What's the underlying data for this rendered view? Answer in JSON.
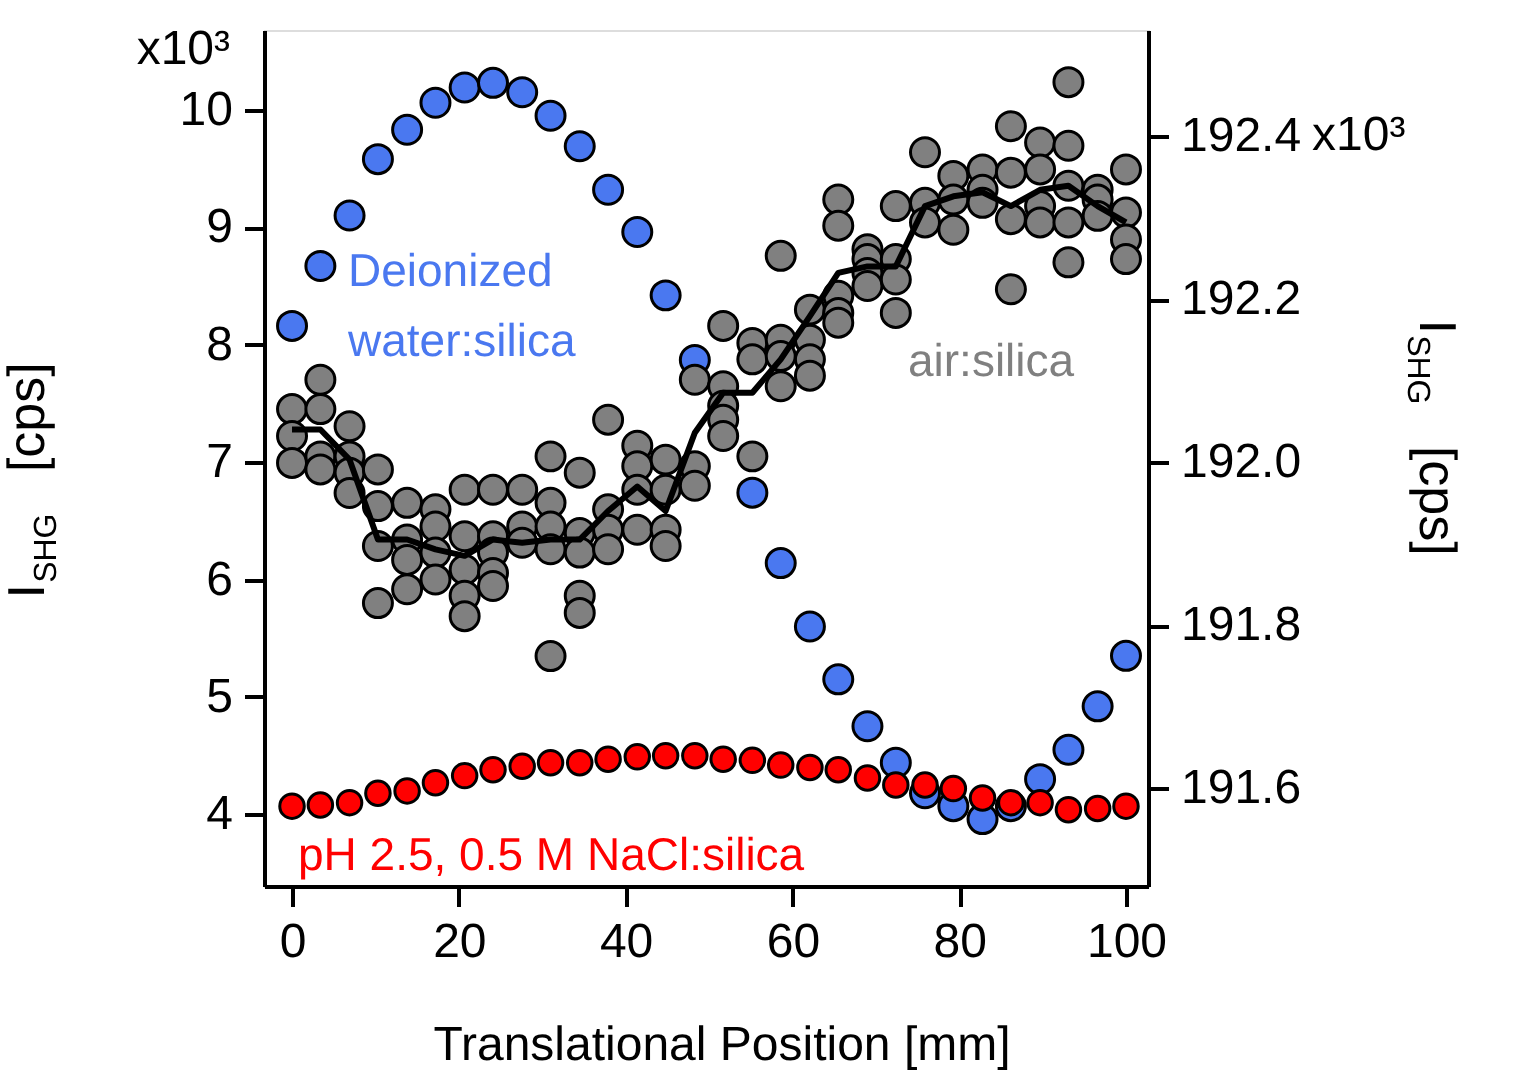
{
  "chart_data": {
    "type": "scatter",
    "xlabel": "Translational Position [mm]",
    "annotations": [
      "x10³",
      "x10³"
    ],
    "ylabel": "I$_{SHG}$  [cps]",
    "y2label": "I$_{SHG}$  [cps]",
    "x": [
      0,
      3.4,
      6.9,
      10.3,
      13.8,
      17.2,
      20.7,
      24.1,
      27.6,
      31,
      34.5,
      37.9,
      41.4,
      44.8,
      48.3,
      51.7,
      55.2,
      58.6,
      62.1,
      65.5,
      69,
      72.4,
      75.9,
      79.3,
      82.8,
      86.2,
      89.7,
      93.1,
      96.6,
      100
    ],
    "series": [
      {
        "name": "Deionized water:silica",
        "color": "#4a78f0",
        "values": [
          8.16,
          8.67,
          9.1,
          9.58,
          9.83,
          10.06,
          10.19,
          10.23,
          10.15,
          9.95,
          9.69,
          9.32,
          8.96,
          8.42,
          7.87,
          null,
          6.74,
          6.14,
          5.6,
          5.15,
          4.75,
          4.44,
          4.18,
          4.07,
          3.96,
          4.07,
          4.3,
          4.55,
          4.92,
          5.35
        ]
      },
      {
        "name": "pH 2.5, 0.5 M NaCl:silica",
        "color": "#ff0000",
        "values": [
          4.07,
          4.08,
          4.1,
          4.18,
          4.2,
          4.27,
          4.33,
          4.38,
          4.41,
          4.44,
          4.44,
          4.47,
          4.49,
          4.5,
          4.5,
          4.47,
          4.46,
          4.42,
          4.4,
          4.38,
          4.31,
          4.25,
          4.25,
          4.22,
          4.14,
          4.1,
          4.1,
          4.04,
          4.05,
          4.07
        ]
      },
      {
        "name": "air:silica",
        "color": "#808080",
        "axis": "y2",
        "x": [
          0,
          0,
          0,
          3.4,
          3.4,
          3.4,
          3.4,
          6.9,
          6.9,
          6.9,
          6.9,
          10.3,
          10.3,
          10.3,
          10.3,
          13.8,
          13.8,
          13.8,
          13.8,
          17.2,
          17.2,
          17.2,
          17.2,
          20.7,
          20.7,
          20.7,
          20.7,
          20.7,
          24.1,
          24.1,
          24.1,
          24.1,
          24.1,
          27.6,
          27.6,
          27.6,
          31,
          31,
          31,
          31,
          31,
          34.5,
          34.5,
          34.5,
          34.5,
          34.5,
          37.9,
          37.9,
          37.9,
          37.9,
          41.4,
          41.4,
          41.4,
          41.4,
          44.8,
          44.8,
          44.8,
          44.8,
          48.3,
          48.3,
          48.3,
          51.7,
          51.7,
          51.7,
          51.7,
          51.7,
          55.2,
          55.2,
          55.2,
          58.6,
          58.6,
          58.6,
          58.6,
          62.1,
          62.1,
          62.1,
          62.1,
          65.5,
          65.5,
          65.5,
          65.5,
          65.5,
          69,
          69,
          69,
          69,
          72.4,
          72.4,
          72.4,
          72.4,
          75.9,
          75.9,
          75.9,
          79.3,
          79.3,
          79.3,
          82.8,
          82.8,
          82.8,
          86.2,
          86.2,
          86.2,
          86.2,
          89.7,
          89.7,
          89.7,
          89.7,
          93.1,
          93.1,
          93.1,
          93.1,
          93.1,
          96.6,
          96.6,
          96.6,
          100,
          100,
          100,
          100
        ],
        "values": [
          192.065,
          192.032,
          191.999,
          192.101,
          192.065,
          192.007,
          191.991,
          192.044,
          192.007,
          191.987,
          191.962,
          191.991,
          191.946,
          191.897,
          191.827,
          191.95,
          191.905,
          191.88,
          191.844,
          191.942,
          191.921,
          191.889,
          191.856,
          191.966,
          191.909,
          191.868,
          191.836,
          191.811,
          191.966,
          191.909,
          191.889,
          191.864,
          191.848,
          191.966,
          191.921,
          191.901,
          192.007,
          191.95,
          191.921,
          191.893,
          191.762,
          191.987,
          191.913,
          191.889,
          191.836,
          191.815,
          192.052,
          191.942,
          191.917,
          191.893,
          192.02,
          191.995,
          191.966,
          191.917,
          192.003,
          191.966,
          191.917,
          191.897,
          192.101,
          191.995,
          191.971,
          192.167,
          192.093,
          192.069,
          192.052,
          192.032,
          192.146,
          192.126,
          192.007,
          192.253,
          192.15,
          192.13,
          192.093,
          192.187,
          192.15,
          192.126,
          192.106,
          192.322,
          192.29,
          192.204,
          192.183,
          192.171,
          192.261,
          192.249,
          192.232,
          192.216,
          192.314,
          192.249,
          192.224,
          192.183,
          192.38,
          192.318,
          192.294,
          192.351,
          192.322,
          192.285,
          192.359,
          192.334,
          192.318,
          192.412,
          192.355,
          192.298,
          192.212,
          192.392,
          192.359,
          192.314,
          192.294,
          192.466,
          192.388,
          192.339,
          192.294,
          192.245,
          192.334,
          192.322,
          192.302,
          192.359,
          192.306,
          192.273,
          192.249
        ]
      },
      {
        "color": "#000000",
        "type": "line",
        "axis": "y2",
        "marker": "none",
        "values": [
          192.04,
          192.04,
          192.003,
          191.905,
          191.905,
          191.893,
          191.885,
          191.905,
          191.901,
          191.905,
          191.905,
          191.94,
          191.97,
          191.94,
          192.036,
          192.085,
          192.085,
          192.126,
          192.179,
          192.232,
          192.24,
          192.24,
          192.314,
          192.326,
          192.331,
          192.314,
          192.334,
          192.339,
          192.314,
          192.294
        ]
      }
    ],
    "xlim": [
      -3.36,
      102.64
    ],
    "xticks": [
      0,
      20,
      40,
      60,
      80,
      100
    ],
    "ylim": [
      3.39,
      10.68
    ],
    "yticks": [
      4,
      5,
      6,
      7,
      8,
      9,
      10
    ],
    "y2lim": [
      191.48,
      192.53
    ],
    "y2ticks": [
      {
        "value": 191.6,
        "label": "191.6"
      },
      {
        "value": 191.8,
        "label": "191.8"
      },
      {
        "value": 192.0,
        "label": "192.0"
      },
      {
        "value": 192.2,
        "label": "192.2"
      },
      {
        "value": 192.4,
        "label": "192.4"
      }
    ],
    "marker": "circle",
    "line_style": "solid",
    "grid": false
  }
}
